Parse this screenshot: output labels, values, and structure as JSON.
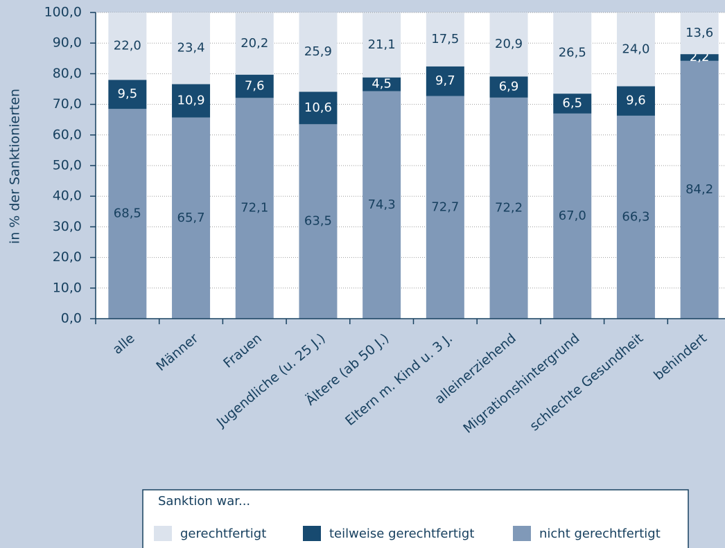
{
  "chart_data": {
    "type": "stacked_bar",
    "ylabel": "in % der Sanktionierten",
    "categories": [
      "alle",
      "Männer",
      "Frauen",
      "Jugendliche (u. 25 J.)",
      "Ältere (ab 50 J.)",
      "Eltern m. Kind u. 3 J.",
      "alleinerziehend",
      "Migrationshintergrund",
      "schlechte Gesundheit",
      "behindert"
    ],
    "series": [
      {
        "name": "nicht gerechtfertigt",
        "color": "#8099b8",
        "label_color": "#17405f",
        "values": [
          68.5,
          65.7,
          72.1,
          63.5,
          74.3,
          72.7,
          72.2,
          67.0,
          66.3,
          84.2
        ],
        "value_labels": [
          "68,5",
          "65,7",
          "72,1",
          "63,5",
          "74,3",
          "72,7",
          "72,2",
          "67,0",
          "66,3",
          "84,2"
        ]
      },
      {
        "name": "teilweise gerechtfertigt",
        "color": "#174a70",
        "label_color": "#ffffff",
        "values": [
          9.5,
          10.9,
          7.6,
          10.6,
          4.5,
          9.7,
          6.9,
          6.5,
          9.6,
          2.2
        ],
        "value_labels": [
          "9,5",
          "10,9",
          "7,6",
          "10,6",
          "4,5",
          "9,7",
          "6,9",
          "6,5",
          "9,6",
          "2,2"
        ]
      },
      {
        "name": "gerechtfertigt",
        "color": "#dce3ed",
        "label_color": "#17405f",
        "values": [
          22.0,
          23.4,
          20.2,
          25.9,
          21.1,
          17.5,
          20.9,
          26.5,
          24.0,
          13.6
        ],
        "value_labels": [
          "22,0",
          "23,4",
          "20,2",
          "25,9",
          "21,1",
          "17,5",
          "20,9",
          "26,5",
          "24,0",
          "13,6"
        ]
      }
    ],
    "ylim": [
      0,
      100
    ],
    "yticks": [
      {
        "value": 0,
        "label": "0,0"
      },
      {
        "value": 10,
        "label": "10,0"
      },
      {
        "value": 20,
        "label": "20,0"
      },
      {
        "value": 30,
        "label": "30,0"
      },
      {
        "value": 40,
        "label": "40,0"
      },
      {
        "value": 50,
        "label": "50,0"
      },
      {
        "value": 60,
        "label": "60,0"
      },
      {
        "value": 70,
        "label": "70,0"
      },
      {
        "value": 80,
        "label": "80,0"
      },
      {
        "value": 90,
        "label": "90,0"
      },
      {
        "value": 100,
        "label": "100,0"
      }
    ],
    "grid": true,
    "legend_title": "Sanktion war...",
    "legend_order": [
      2,
      1,
      0
    ]
  }
}
